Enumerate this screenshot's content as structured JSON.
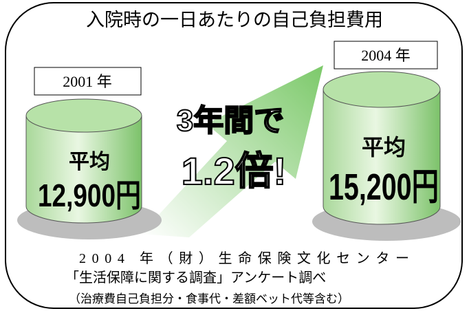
{
  "title": "入院時の一日あたりの自己負担費用",
  "items": [
    {
      "year": "2001 年",
      "label": "平均",
      "amount": "12,900円"
    },
    {
      "year": "2004 年",
      "label": "平均",
      "amount": "15,200円"
    }
  ],
  "center": {
    "line1": "3年間で",
    "line2": "1.2倍!"
  },
  "source": [
    "2004 年（財）生命保険文化センター",
    "「生活保障に関する調査」アンケート調べ",
    "（治療費自己負担分・食事代・差額ベット代等含む）"
  ]
}
